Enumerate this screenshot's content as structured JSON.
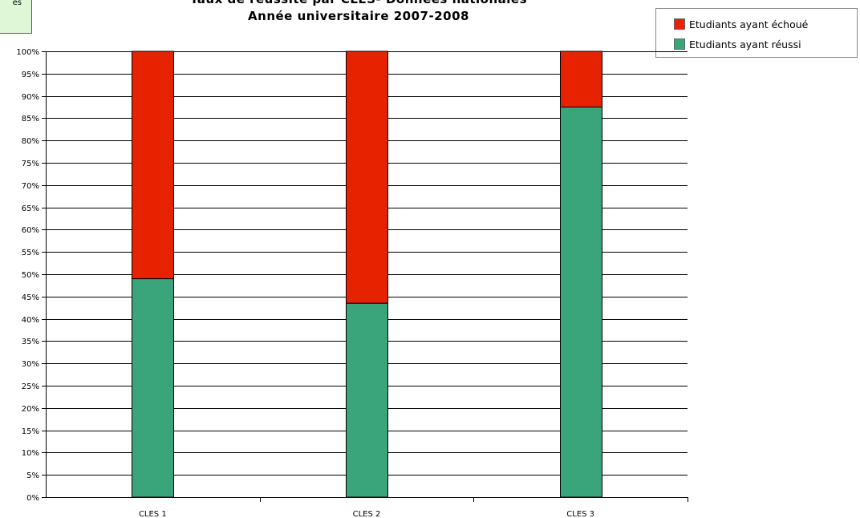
{
  "note_text": "es",
  "chart_data": {
    "type": "bar",
    "stacked": true,
    "title": "Taux de réussite par CLES- Données nationales",
    "subtitle": "Année universitaire 2007-2008",
    "categories": [
      "CLES 1",
      "CLES 2",
      "CLES 3"
    ],
    "series": [
      {
        "name": "Etudiants ayant réussi",
        "color": "#3aa57a",
        "values": [
          49,
          43.5,
          87.5
        ]
      },
      {
        "name": "Etudiants ayant échoué",
        "color": "#e62200",
        "values": [
          51,
          56.5,
          12.5
        ]
      }
    ],
    "ylim": [
      0,
      100
    ],
    "yticks": [
      "0%",
      "5%",
      "10%",
      "15%",
      "20%",
      "25%",
      "30%",
      "35%",
      "40%",
      "45%",
      "50%",
      "55%",
      "60%",
      "65%",
      "70%",
      "75%",
      "80%",
      "85%",
      "90%",
      "95%",
      "100%"
    ],
    "grid": true,
    "legend_position": "top-right"
  },
  "legend": [
    {
      "label": "Etudiants ayant échoué",
      "color": "#e62200"
    },
    {
      "label": "Etudiants ayant réussi",
      "color": "#3aa57a"
    }
  ]
}
